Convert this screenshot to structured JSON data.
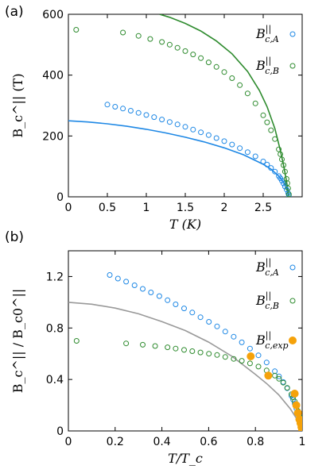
{
  "chart_data": [
    {
      "type": "scatter",
      "panel_label": "(a)",
      "xlabel": "T (K)",
      "ylabel": "B_c^|| (T)",
      "xlim": [
        0,
        3.0
      ],
      "ylim": [
        0,
        600
      ],
      "xticks": [
        "0",
        "0.5",
        "1",
        "1.5",
        "2",
        "2.5"
      ],
      "xtick_values": [
        0,
        0.5,
        1,
        1.5,
        2,
        2.5
      ],
      "yticks": [
        "0",
        "200",
        "400",
        "600"
      ],
      "ytick_values": [
        0,
        200,
        400,
        600
      ],
      "legend_placement": "top-right",
      "series": [
        {
          "name": "B_c,A^||",
          "color": "#1e88e5",
          "marker": "open-circle",
          "x": [
            0.5,
            0.6,
            0.7,
            0.8,
            0.9,
            1.0,
            1.1,
            1.2,
            1.3,
            1.4,
            1.5,
            1.6,
            1.7,
            1.8,
            1.9,
            2.0,
            2.1,
            2.2,
            2.3,
            2.4,
            2.5,
            2.55,
            2.6,
            2.65,
            2.7,
            2.72,
            2.74,
            2.76,
            2.78,
            2.8,
            2.82,
            2.83
          ],
          "y": [
            303,
            296,
            290,
            283,
            276,
            269,
            262,
            254,
            246,
            238,
            230,
            221,
            212,
            203,
            193,
            183,
            172,
            160,
            147,
            133,
            116,
            106,
            95,
            83,
            68,
            61,
            53,
            44,
            34,
            24,
            12,
            4
          ]
        },
        {
          "name": "B_c,B^||",
          "color": "#2e8b2e",
          "marker": "open-circle",
          "x": [
            0.1,
            0.7,
            0.9,
            1.05,
            1.2,
            1.3,
            1.4,
            1.5,
            1.6,
            1.7,
            1.8,
            1.9,
            2.0,
            2.1,
            2.2,
            2.3,
            2.4,
            2.5,
            2.55,
            2.6,
            2.65,
            2.7,
            2.72,
            2.74,
            2.76,
            2.78,
            2.8,
            2.81,
            2.82,
            2.83
          ],
          "y": [
            549,
            540,
            529,
            519,
            509,
            500,
            490,
            479,
            468,
            456,
            442,
            427,
            410,
            390,
            367,
            340,
            307,
            268,
            245,
            219,
            190,
            156,
            140,
            123,
            104,
            83,
            59,
            45,
            28,
            8
          ]
        },
        {
          "name": "",
          "color": "#1e88e5",
          "marker": "line",
          "x": [
            0,
            0.25,
            0.5,
            0.75,
            1.0,
            1.25,
            1.5,
            1.75,
            2.0,
            2.25,
            2.5,
            2.6,
            2.7,
            2.75,
            2.8,
            2.83
          ],
          "y": [
            250,
            246,
            240,
            232,
            222,
            210,
            196,
            180,
            161,
            138,
            107,
            91,
            68,
            52,
            28,
            0
          ]
        },
        {
          "name": "",
          "color": "#2e8b2e",
          "marker": "line",
          "x": [
            1.17,
            1.3,
            1.5,
            1.7,
            1.9,
            2.1,
            2.3,
            2.45,
            2.55,
            2.65,
            2.72,
            2.77,
            2.8,
            2.83
          ],
          "y": [
            600,
            590,
            570,
            545,
            512,
            470,
            412,
            350,
            296,
            224,
            152,
            92,
            50,
            0
          ]
        }
      ]
    },
    {
      "type": "scatter",
      "panel_label": "(b)",
      "xlabel": "T/T_c",
      "ylabel": "B_c^|| / B_c0^||",
      "xlim": [
        0,
        1.0
      ],
      "ylim": [
        0,
        1.4
      ],
      "xticks": [
        "0",
        "0.2",
        "0.4",
        "0.6",
        "0.8",
        "1"
      ],
      "xtick_values": [
        0,
        0.2,
        0.4,
        0.6,
        0.8,
        1.0
      ],
      "yticks": [
        "0",
        "0.4",
        "0.8",
        "1.2"
      ],
      "ytick_values": [
        0,
        0.4,
        0.8,
        1.2
      ],
      "legend_placement": "right",
      "series": [
        {
          "name": "B_c,A^||",
          "color": "#1e88e5",
          "marker": "open-circle",
          "x": [
            0.177,
            0.212,
            0.247,
            0.283,
            0.318,
            0.353,
            0.389,
            0.424,
            0.459,
            0.495,
            0.53,
            0.565,
            0.601,
            0.636,
            0.671,
            0.707,
            0.742,
            0.777,
            0.813,
            0.848,
            0.883,
            0.901,
            0.919,
            0.936,
            0.954,
            0.961,
            0.968,
            0.975,
            0.982,
            0.989,
            0.996,
            0.999
          ],
          "y": [
            1.212,
            1.184,
            1.16,
            1.132,
            1.104,
            1.076,
            1.048,
            1.016,
            0.984,
            0.952,
            0.92,
            0.884,
            0.848,
            0.812,
            0.772,
            0.732,
            0.688,
            0.64,
            0.588,
            0.532,
            0.464,
            0.424,
            0.38,
            0.332,
            0.272,
            0.244,
            0.212,
            0.176,
            0.136,
            0.096,
            0.048,
            0.016
          ]
        },
        {
          "name": "B_c,B^||",
          "color": "#2e8b2e",
          "marker": "open-circle",
          "x": [
            0.035,
            0.247,
            0.318,
            0.371,
            0.424,
            0.459,
            0.495,
            0.53,
            0.565,
            0.601,
            0.636,
            0.671,
            0.707,
            0.742,
            0.777,
            0.813,
            0.848,
            0.883,
            0.901,
            0.919,
            0.936,
            0.954,
            0.961,
            0.968,
            0.975,
            0.982,
            0.989,
            0.993,
            0.996,
            0.999
          ],
          "y": [
            0.7,
            0.68,
            0.67,
            0.66,
            0.65,
            0.64,
            0.63,
            0.62,
            0.61,
            0.6,
            0.59,
            0.575,
            0.56,
            0.545,
            0.525,
            0.5,
            0.47,
            0.43,
            0.405,
            0.375,
            0.335,
            0.285,
            0.26,
            0.23,
            0.195,
            0.155,
            0.11,
            0.085,
            0.055,
            0.015
          ]
        },
        {
          "name": "B_c,exp^||",
          "color": "#f5a20a",
          "marker": "filled-circle",
          "x": [
            0.78,
            0.855,
            0.968,
            0.975,
            0.982,
            0.988,
            0.993,
            0.997,
            1.0
          ],
          "y": [
            0.58,
            0.43,
            0.29,
            0.2,
            0.14,
            0.09,
            0.06,
            0.03,
            0.01
          ]
        },
        {
          "name": "",
          "color": "#999999",
          "marker": "line",
          "x": [
            0,
            0.1,
            0.2,
            0.3,
            0.4,
            0.5,
            0.6,
            0.7,
            0.8,
            0.85,
            0.9,
            0.95,
            0.98,
            1.0
          ],
          "y": [
            1.0,
            0.985,
            0.955,
            0.91,
            0.85,
            0.78,
            0.69,
            0.58,
            0.44,
            0.365,
            0.28,
            0.17,
            0.085,
            0.0
          ]
        }
      ]
    }
  ]
}
